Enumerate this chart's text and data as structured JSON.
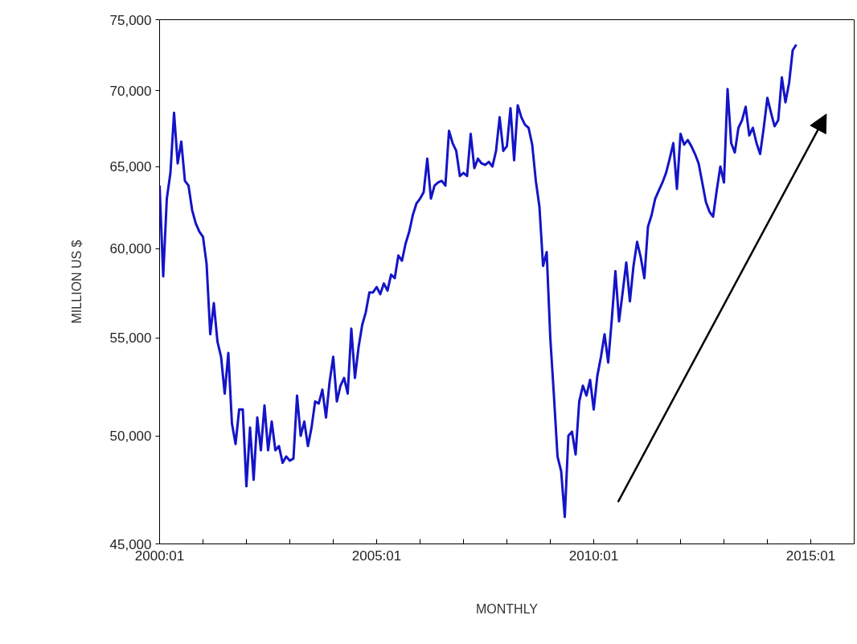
{
  "chart_data": {
    "type": "line",
    "xlabel": "MONTHLY",
    "ylabel": "MILLION US $",
    "log": "y",
    "grid": false,
    "xlim": [
      "2000-01",
      "2016-01"
    ],
    "ylim": [
      45000,
      75000
    ],
    "xticks": [
      {
        "value": "2000-01",
        "label": "2000:01"
      },
      {
        "value": "2001-01",
        "label": null
      },
      {
        "value": "2002-01",
        "label": null
      },
      {
        "value": "2003-01",
        "label": null
      },
      {
        "value": "2004-01",
        "label": null
      },
      {
        "value": "2005-01",
        "label": "2005:01"
      },
      {
        "value": "2006-01",
        "label": null
      },
      {
        "value": "2007-01",
        "label": null
      },
      {
        "value": "2008-01",
        "label": null
      },
      {
        "value": "2009-01",
        "label": null
      },
      {
        "value": "2010-01",
        "label": "2010:01"
      },
      {
        "value": "2011-01",
        "label": null
      },
      {
        "value": "2012-01",
        "label": null
      },
      {
        "value": "2013-01",
        "label": null
      },
      {
        "value": "2014-01",
        "label": null
      },
      {
        "value": "2015-01",
        "label": "2015:01"
      }
    ],
    "yticks": [
      {
        "value": 45000,
        "label": "45,000"
      },
      {
        "value": 50000,
        "label": "50,000"
      },
      {
        "value": 55000,
        "label": "55,000"
      },
      {
        "value": 60000,
        "label": "60,000"
      },
      {
        "value": 65000,
        "label": "65,000"
      },
      {
        "value": 70000,
        "label": "70,000"
      },
      {
        "value": 75000,
        "label": "75,000"
      }
    ],
    "x": [
      "2000-01",
      "2000-02",
      "2000-03",
      "2000-04",
      "2000-05",
      "2000-06",
      "2000-07",
      "2000-08",
      "2000-09",
      "2000-10",
      "2000-11",
      "2000-12",
      "2001-01",
      "2001-02",
      "2001-03",
      "2001-04",
      "2001-05",
      "2001-06",
      "2001-07",
      "2001-08",
      "2001-09",
      "2001-10",
      "2001-11",
      "2001-12",
      "2002-01",
      "2002-02",
      "2002-03",
      "2002-04",
      "2002-05",
      "2002-06",
      "2002-07",
      "2002-08",
      "2002-09",
      "2002-10",
      "2002-11",
      "2002-12",
      "2003-01",
      "2003-02",
      "2003-03",
      "2003-04",
      "2003-05",
      "2003-06",
      "2003-07",
      "2003-08",
      "2003-09",
      "2003-10",
      "2003-11",
      "2003-12",
      "2004-01",
      "2004-02",
      "2004-03",
      "2004-04",
      "2004-05",
      "2004-06",
      "2004-07",
      "2004-08",
      "2004-09",
      "2004-10",
      "2004-11",
      "2004-12",
      "2005-01",
      "2005-02",
      "2005-03",
      "2005-04",
      "2005-05",
      "2005-06",
      "2005-07",
      "2005-08",
      "2005-09",
      "2005-10",
      "2005-11",
      "2005-12",
      "2006-01",
      "2006-02",
      "2006-03",
      "2006-04",
      "2006-05",
      "2006-06",
      "2006-07",
      "2006-08",
      "2006-09",
      "2006-10",
      "2006-11",
      "2006-12",
      "2007-01",
      "2007-02",
      "2007-03",
      "2007-04",
      "2007-05",
      "2007-06",
      "2007-07",
      "2007-08",
      "2007-09",
      "2007-10",
      "2007-11",
      "2007-12",
      "2008-01",
      "2008-02",
      "2008-03",
      "2008-04",
      "2008-05",
      "2008-06",
      "2008-07",
      "2008-08",
      "2008-09",
      "2008-10",
      "2008-11",
      "2008-12",
      "2009-01",
      "2009-02",
      "2009-03",
      "2009-04",
      "2009-05",
      "2009-06",
      "2009-07",
      "2009-08",
      "2009-09",
      "2009-10",
      "2009-11",
      "2009-12",
      "2010-01",
      "2010-02",
      "2010-03",
      "2010-04",
      "2010-05",
      "2010-06",
      "2010-07",
      "2010-08",
      "2010-09",
      "2010-10",
      "2010-11",
      "2010-12",
      "2011-01",
      "2011-02",
      "2011-03",
      "2011-04",
      "2011-05",
      "2011-06",
      "2011-07",
      "2011-08",
      "2011-09",
      "2011-10",
      "2011-11",
      "2011-12",
      "2012-01",
      "2012-02",
      "2012-03",
      "2012-04",
      "2012-05",
      "2012-06",
      "2012-07",
      "2012-08",
      "2012-09",
      "2012-10",
      "2012-11",
      "2012-12",
      "2013-01",
      "2013-02",
      "2013-03",
      "2013-04",
      "2013-05",
      "2013-06",
      "2013-07",
      "2013-08",
      "2013-09",
      "2013-10",
      "2013-11",
      "2013-12",
      "2014-01",
      "2014-02",
      "2014-03",
      "2014-04",
      "2014-05",
      "2014-06",
      "2014-07",
      "2014-08",
      "2014-09"
    ],
    "series": [
      {
        "color": "#1414c8",
        "values": [
          63800,
          58400,
          63000,
          64600,
          68500,
          65200,
          66600,
          64100,
          63800,
          62300,
          61500,
          61000,
          60700,
          59100,
          55200,
          56900,
          54800,
          54000,
          52100,
          54200,
          50600,
          49600,
          51300,
          51300,
          47600,
          50400,
          47900,
          50900,
          49300,
          51500,
          49300,
          50700,
          49300,
          49500,
          48700,
          49000,
          48800,
          48900,
          52000,
          50000,
          50700,
          49500,
          50400,
          51700,
          51600,
          52300,
          50900,
          52700,
          54000,
          51700,
          52500,
          52900,
          52100,
          55500,
          52900,
          54500,
          55700,
          56400,
          57500,
          57500,
          57800,
          57400,
          58000,
          57600,
          58500,
          58300,
          59600,
          59300,
          60300,
          61000,
          62000,
          62700,
          63000,
          63400,
          65500,
          63000,
          63800,
          64000,
          64100,
          63800,
          67300,
          66500,
          66000,
          64400,
          64600,
          64400,
          67100,
          64900,
          65500,
          65200,
          65100,
          65300,
          65000,
          66000,
          68200,
          66000,
          66300,
          68800,
          65400,
          69000,
          68200,
          67700,
          67500,
          66400,
          64100,
          62500,
          59000,
          59800,
          55000,
          52000,
          49000,
          48300,
          46200,
          50000,
          50200,
          49100,
          51700,
          52500,
          52000,
          52800,
          51300,
          53000,
          54000,
          55200,
          53700,
          56000,
          58700,
          55900,
          57500,
          59200,
          57000,
          59000,
          60400,
          59500,
          58300,
          61300,
          62000,
          63000,
          63500,
          64000,
          64600,
          65500,
          66500,
          63600,
          67100,
          66400,
          66700,
          66300,
          65800,
          65200,
          64000,
          62800,
          62200,
          61900,
          63500,
          65000,
          64000,
          70100,
          66500,
          65900,
          67500,
          68000,
          68900,
          67000,
          67500,
          66500,
          65800,
          67500,
          69500,
          68500,
          67600,
          68000,
          70900,
          69200,
          70500,
          72800,
          73200
        ]
      }
    ]
  }
}
